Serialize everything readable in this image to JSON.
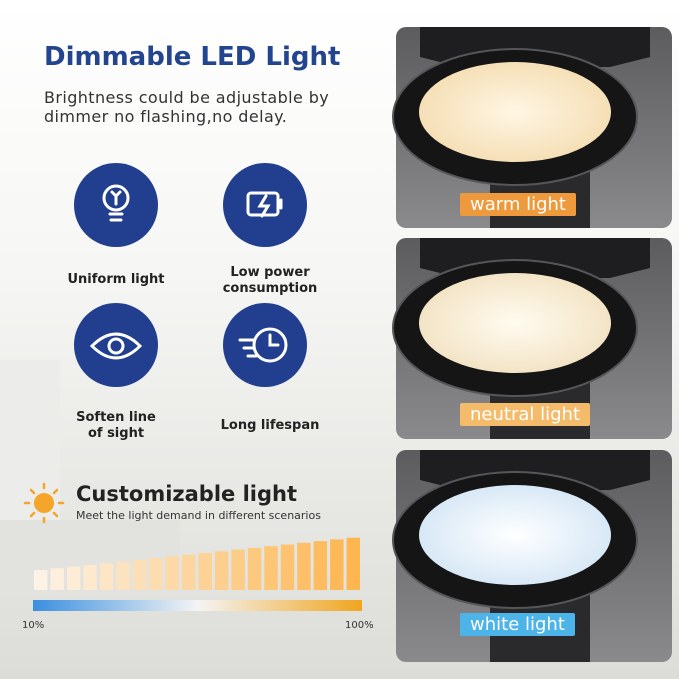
{
  "header": {
    "title": "Dimmable LED Light",
    "subtitle_lines": [
      "Brightness could be adjustable by",
      "dimmer no flashing,no delay."
    ]
  },
  "features": [
    {
      "label_lines": [
        "Uniform light"
      ]
    },
    {
      "label_lines": [
        "Low power",
        "consumption"
      ]
    },
    {
      "label_lines": [
        "Soften line",
        "of sight"
      ]
    },
    {
      "label_lines": [
        "Long lifespan"
      ]
    }
  ],
  "customizable": {
    "title": "Customizable light",
    "subtitle": "Meet the light demand in different scenarios",
    "min_label": "10%",
    "max_label": "100%"
  },
  "panels": [
    {
      "label": "warm light"
    },
    {
      "label": "neutral light"
    },
    {
      "label": "white light"
    }
  ]
}
